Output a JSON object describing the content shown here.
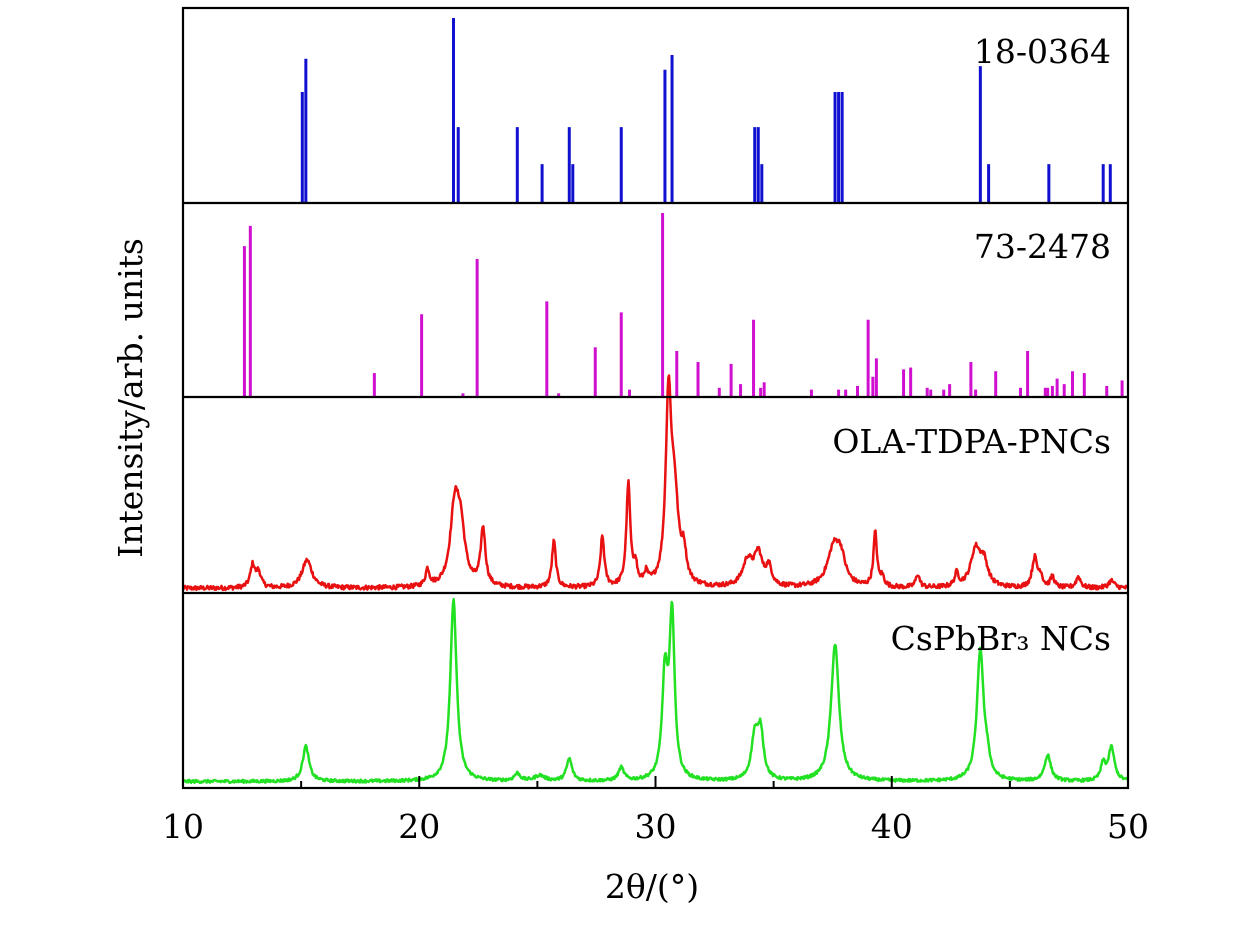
{
  "chart_data": {
    "type": "line",
    "xlabel": "2θ/(°)",
    "ylabel": "Intensity/arb. units",
    "xlim": [
      10,
      50
    ],
    "x_ticks": [
      10,
      20,
      30,
      40,
      50
    ],
    "x_tick_labels": [
      "10",
      "20",
      "30",
      "40",
      "50"
    ],
    "grid": false,
    "panels": [
      {
        "label": "18-0364",
        "color": "#1010d0",
        "kind": "stick",
        "sticks": [
          {
            "x": 15.05,
            "h": 0.6
          },
          {
            "x": 15.2,
            "h": 0.78
          },
          {
            "x": 21.45,
            "h": 1.0
          },
          {
            "x": 21.65,
            "h": 0.41
          },
          {
            "x": 24.15,
            "h": 0.41
          },
          {
            "x": 25.2,
            "h": 0.21
          },
          {
            "x": 26.35,
            "h": 0.41
          },
          {
            "x": 26.5,
            "h": 0.21
          },
          {
            "x": 28.55,
            "h": 0.41
          },
          {
            "x": 30.4,
            "h": 0.72
          },
          {
            "x": 30.7,
            "h": 0.8
          },
          {
            "x": 34.2,
            "h": 0.41
          },
          {
            "x": 34.35,
            "h": 0.41
          },
          {
            "x": 34.5,
            "h": 0.21
          },
          {
            "x": 37.6,
            "h": 0.6
          },
          {
            "x": 37.75,
            "h": 0.6
          },
          {
            "x": 37.9,
            "h": 0.6
          },
          {
            "x": 43.75,
            "h": 0.74
          },
          {
            "x": 44.1,
            "h": 0.21
          },
          {
            "x": 46.65,
            "h": 0.21
          },
          {
            "x": 48.95,
            "h": 0.21
          },
          {
            "x": 49.25,
            "h": 0.21
          }
        ]
      },
      {
        "label": "73-2478",
        "color": "#d010d0",
        "kind": "stick",
        "sticks": [
          {
            "x": 12.6,
            "h": 0.82
          },
          {
            "x": 12.85,
            "h": 0.93
          },
          {
            "x": 18.1,
            "h": 0.13
          },
          {
            "x": 20.1,
            "h": 0.45
          },
          {
            "x": 21.85,
            "h": 0.02
          },
          {
            "x": 22.45,
            "h": 0.75
          },
          {
            "x": 25.4,
            "h": 0.52
          },
          {
            "x": 25.9,
            "h": 0.02
          },
          {
            "x": 27.45,
            "h": 0.27
          },
          {
            "x": 28.55,
            "h": 0.46
          },
          {
            "x": 28.9,
            "h": 0.04
          },
          {
            "x": 30.3,
            "h": 1.0
          },
          {
            "x": 30.9,
            "h": 0.25
          },
          {
            "x": 31.8,
            "h": 0.19
          },
          {
            "x": 32.7,
            "h": 0.05
          },
          {
            "x": 33.2,
            "h": 0.18
          },
          {
            "x": 33.6,
            "h": 0.07
          },
          {
            "x": 34.15,
            "h": 0.42
          },
          {
            "x": 34.45,
            "h": 0.05
          },
          {
            "x": 34.6,
            "h": 0.08
          },
          {
            "x": 36.6,
            "h": 0.04
          },
          {
            "x": 37.75,
            "h": 0.04
          },
          {
            "x": 38.05,
            "h": 0.04
          },
          {
            "x": 38.55,
            "h": 0.06
          },
          {
            "x": 39.0,
            "h": 0.42
          },
          {
            "x": 39.2,
            "h": 0.11
          },
          {
            "x": 39.35,
            "h": 0.21
          },
          {
            "x": 40.5,
            "h": 0.15
          },
          {
            "x": 40.8,
            "h": 0.16
          },
          {
            "x": 41.5,
            "h": 0.05
          },
          {
            "x": 41.65,
            "h": 0.04
          },
          {
            "x": 42.2,
            "h": 0.04
          },
          {
            "x": 42.45,
            "h": 0.07
          },
          {
            "x": 43.35,
            "h": 0.19
          },
          {
            "x": 43.55,
            "h": 0.04
          },
          {
            "x": 44.4,
            "h": 0.14
          },
          {
            "x": 45.45,
            "h": 0.05
          },
          {
            "x": 45.75,
            "h": 0.25
          },
          {
            "x": 46.5,
            "h": 0.05
          },
          {
            "x": 46.6,
            "h": 0.05
          },
          {
            "x": 46.8,
            "h": 0.06
          },
          {
            "x": 47.0,
            "h": 0.1
          },
          {
            "x": 47.3,
            "h": 0.07
          },
          {
            "x": 47.65,
            "h": 0.14
          },
          {
            "x": 48.15,
            "h": 0.13
          },
          {
            "x": 49.1,
            "h": 0.06
          },
          {
            "x": 49.75,
            "h": 0.09
          }
        ]
      },
      {
        "label": "OLA-TDPA-PNCs",
        "color": "#e81010",
        "kind": "pattern",
        "baseline": 0.025,
        "noise": 0.012,
        "peaks": [
          {
            "x": 12.95,
            "h": 0.12,
            "w": 0.12
          },
          {
            "x": 13.2,
            "h": 0.08,
            "w": 0.12
          },
          {
            "x": 15.25,
            "h": 0.15,
            "w": 0.25
          },
          {
            "x": 20.35,
            "h": 0.09,
            "w": 0.1
          },
          {
            "x": 21.5,
            "h": 0.4,
            "w": 0.22
          },
          {
            "x": 21.75,
            "h": 0.28,
            "w": 0.22
          },
          {
            "x": 22.7,
            "h": 0.31,
            "w": 0.12
          },
          {
            "x": 25.7,
            "h": 0.25,
            "w": 0.1
          },
          {
            "x": 27.75,
            "h": 0.27,
            "w": 0.1
          },
          {
            "x": 28.85,
            "h": 0.55,
            "w": 0.1
          },
          {
            "x": 29.15,
            "h": 0.11,
            "w": 0.08
          },
          {
            "x": 29.6,
            "h": 0.06,
            "w": 0.1
          },
          {
            "x": 30.55,
            "h": 0.96,
            "w": 0.14
          },
          {
            "x": 30.8,
            "h": 0.45,
            "w": 0.2
          },
          {
            "x": 31.2,
            "h": 0.15,
            "w": 0.12
          },
          {
            "x": 33.9,
            "h": 0.14,
            "w": 0.25
          },
          {
            "x": 34.35,
            "h": 0.17,
            "w": 0.2
          },
          {
            "x": 34.8,
            "h": 0.1,
            "w": 0.15
          },
          {
            "x": 37.55,
            "h": 0.21,
            "w": 0.32
          },
          {
            "x": 37.85,
            "h": 0.12,
            "w": 0.22
          },
          {
            "x": 39.3,
            "h": 0.29,
            "w": 0.09
          },
          {
            "x": 39.6,
            "h": 0.05,
            "w": 0.1
          },
          {
            "x": 41.1,
            "h": 0.07,
            "w": 0.1
          },
          {
            "x": 42.75,
            "h": 0.07,
            "w": 0.1
          },
          {
            "x": 43.55,
            "h": 0.2,
            "w": 0.25
          },
          {
            "x": 43.9,
            "h": 0.12,
            "w": 0.2
          },
          {
            "x": 46.05,
            "h": 0.16,
            "w": 0.13
          },
          {
            "x": 46.3,
            "h": 0.06,
            "w": 0.1
          },
          {
            "x": 46.8,
            "h": 0.06,
            "w": 0.1
          },
          {
            "x": 47.9,
            "h": 0.06,
            "w": 0.12
          },
          {
            "x": 49.3,
            "h": 0.04,
            "w": 0.15
          }
        ]
      },
      {
        "label": "CsPbBr₃ NCs",
        "color": "#22e022",
        "kind": "pattern",
        "baseline": 0.035,
        "noise": 0.008,
        "peaks": [
          {
            "x": 15.2,
            "h": 0.19,
            "w": 0.16
          },
          {
            "x": 21.45,
            "h": 0.98,
            "w": 0.16
          },
          {
            "x": 24.15,
            "h": 0.04,
            "w": 0.15
          },
          {
            "x": 25.1,
            "h": 0.03,
            "w": 0.25
          },
          {
            "x": 26.35,
            "h": 0.12,
            "w": 0.14
          },
          {
            "x": 28.55,
            "h": 0.07,
            "w": 0.14
          },
          {
            "x": 30.4,
            "h": 0.55,
            "w": 0.14
          },
          {
            "x": 30.7,
            "h": 0.88,
            "w": 0.13
          },
          {
            "x": 34.2,
            "h": 0.23,
            "w": 0.17
          },
          {
            "x": 34.45,
            "h": 0.25,
            "w": 0.15
          },
          {
            "x": 37.6,
            "h": 0.74,
            "w": 0.2
          },
          {
            "x": 43.75,
            "h": 0.71,
            "w": 0.17
          },
          {
            "x": 44.05,
            "h": 0.08,
            "w": 0.12
          },
          {
            "x": 46.6,
            "h": 0.14,
            "w": 0.16
          },
          {
            "x": 48.95,
            "h": 0.09,
            "w": 0.12
          },
          {
            "x": 49.3,
            "h": 0.18,
            "w": 0.15
          }
        ]
      }
    ]
  }
}
